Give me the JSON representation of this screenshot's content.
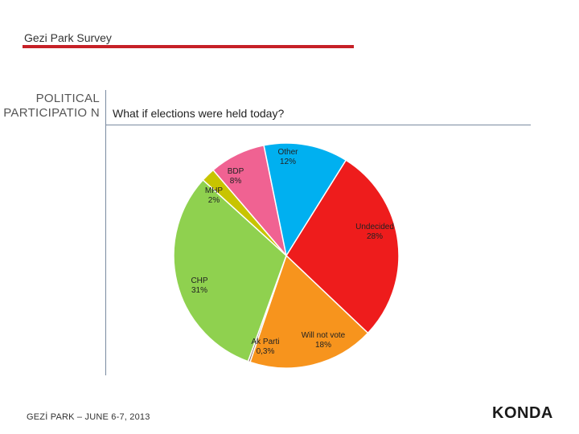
{
  "header": {
    "title": "Gezi Park Survey"
  },
  "section": {
    "label": "POLITICAL PARTICIPATIO N"
  },
  "question": "What if elections were held today?",
  "footer": {
    "text": "GEZİ PARK – JUNE 6-7, 2013"
  },
  "logo": {
    "text": "KONDA",
    "tagline": ""
  },
  "chart_data": {
    "type": "pie",
    "title": "",
    "slices": [
      {
        "label": "Undecided",
        "pct_text": "28%",
        "value": 28,
        "color": "#ee1c1c"
      },
      {
        "label": "Will not vote",
        "pct_text": "18%",
        "value": 18,
        "color": "#f7941d"
      },
      {
        "label": "Ak Parti",
        "pct_text": "0,3%",
        "value": 0.3,
        "color": "#8d6e63"
      },
      {
        "label": "CHP",
        "pct_text": "31%",
        "value": 31,
        "color": "#8fd14f"
      },
      {
        "label": "MHP",
        "pct_text": "2%",
        "value": 2,
        "color": "#c8c400"
      },
      {
        "label": "BDP",
        "pct_text": "8%",
        "value": 8,
        "color": "#f06292"
      },
      {
        "label": "Other",
        "pct_text": "12%",
        "value": 12,
        "color": "#00b0f0"
      }
    ]
  }
}
